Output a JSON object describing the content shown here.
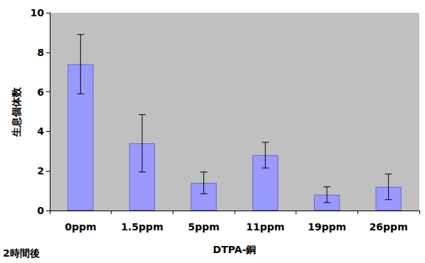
{
  "chart_data": {
    "type": "bar",
    "y_label": "生息個体数",
    "x_label": "DTPA-銅",
    "annotation": "2時間後",
    "categories": [
      "0ppm",
      "1.5ppm",
      "5ppm",
      "11ppm",
      "19ppm",
      "26ppm"
    ],
    "values": [
      7.4,
      3.4,
      1.4,
      2.8,
      0.8,
      1.2
    ],
    "errors": [
      1.5,
      1.45,
      0.55,
      0.65,
      0.4,
      0.65
    ],
    "color": "#9999ff",
    "ylim": [
      0,
      10
    ],
    "yticks": [
      0,
      2,
      4,
      6,
      8,
      10
    ],
    "grid": false
  }
}
